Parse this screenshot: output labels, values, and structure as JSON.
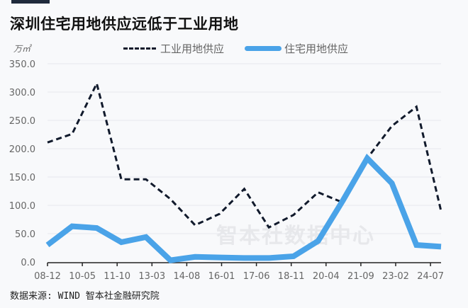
{
  "header": {
    "title": "深圳住宅用地供应远低于工业用地",
    "unit": "万㎡"
  },
  "legend": [
    {
      "label": "工业用地供应",
      "style": "dashed",
      "color": "#111a2c"
    },
    {
      "label": "住宅用地供应",
      "style": "solid",
      "color": "#4aa3e8"
    }
  ],
  "watermark": "智本社数据中心",
  "source": "数据来源: WIND 智本社金融研究院",
  "chart_data": {
    "type": "line",
    "title": "深圳住宅用地供应远低于工业用地",
    "ylabel": "万㎡",
    "xlabel": "",
    "ylim": [
      0,
      350
    ],
    "yticks": [
      "0.0",
      "50.0",
      "100.0",
      "150.0",
      "200.0",
      "250.0",
      "300.0",
      "350.0"
    ],
    "xtick_labels": [
      "08-12",
      "10-05",
      "11-10",
      "13-03",
      "14-08",
      "16-01",
      "17-06",
      "18-11",
      "20-04",
      "21-09",
      "23-02",
      "24-07"
    ],
    "grid": true,
    "legend_position": "top",
    "x": [
      "2008-12",
      "2009-12",
      "2010-12",
      "2011-12",
      "2012-12",
      "2013-12",
      "2014-12",
      "2015-12",
      "2016-12",
      "2017-12",
      "2018-12",
      "2019-12",
      "2020-12",
      "2021-12",
      "2022-12",
      "2023-12",
      "2024-12"
    ],
    "series": [
      {
        "name": "工业用地供应",
        "values": [
          211,
          226,
          315,
          146,
          146,
          111,
          65,
          85,
          129,
          61,
          83,
          123,
          105,
          183,
          240,
          274,
          90
        ]
      },
      {
        "name": "住宅用地供应",
        "values": [
          30,
          63,
          60,
          35,
          44,
          3,
          9,
          8,
          7,
          7,
          10,
          37,
          108,
          183,
          139,
          30,
          27
        ]
      }
    ]
  }
}
